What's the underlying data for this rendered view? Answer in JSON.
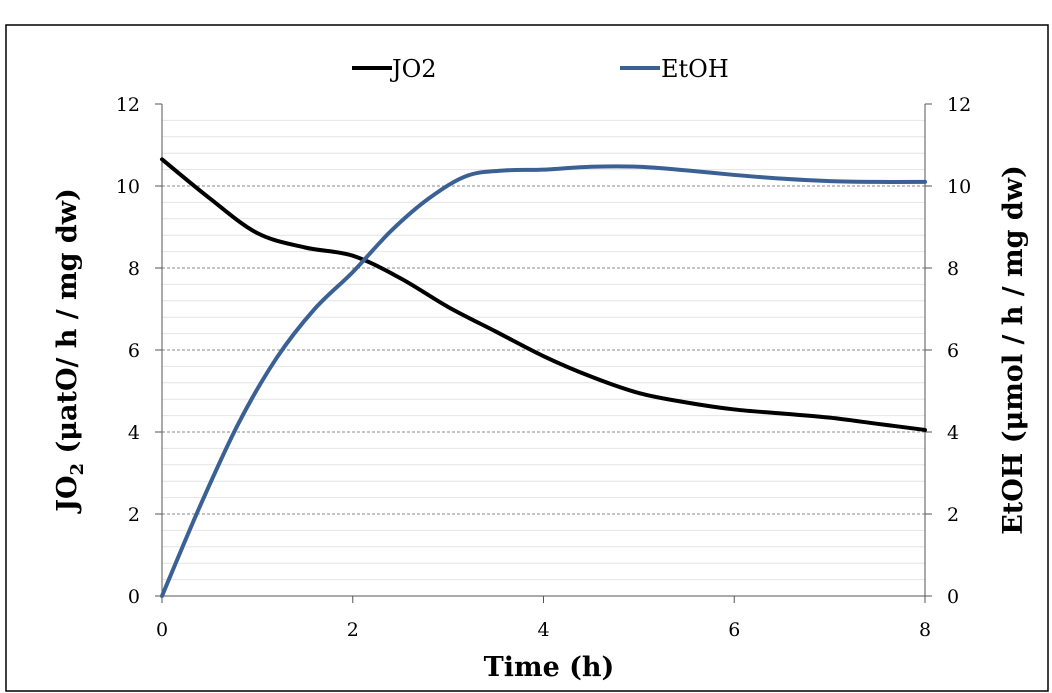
{
  "chart_data": {
    "type": "line",
    "xlabel": "Time (h)",
    "ylabel_left": {
      "main": "JO",
      "sub": "2",
      "rest": " (μatO/ h / mg dw)"
    },
    "ylabel_right": "EtOH (μmol / h / mg dw)",
    "xlim": [
      0,
      8
    ],
    "ylim_left": [
      0,
      12
    ],
    "ylim_right": [
      0,
      12
    ],
    "x_ticks": [
      "0",
      "2",
      "4",
      "6",
      "8"
    ],
    "y_ticks_left": [
      "0",
      "2",
      "4",
      "6",
      "8",
      "10",
      "12"
    ],
    "y_ticks_right": [
      "0",
      "2",
      "4",
      "6",
      "8",
      "10",
      "12"
    ],
    "grid": {
      "major_dashed": true,
      "minor": true
    },
    "legend_position": "top-center",
    "series": [
      {
        "name": "JO2",
        "color": "#000000",
        "axis": "left",
        "points": [
          [
            0,
            10.65
          ],
          [
            0.5,
            9.7
          ],
          [
            1,
            8.85
          ],
          [
            1.5,
            8.5
          ],
          [
            2,
            8.3
          ],
          [
            2.5,
            7.75
          ],
          [
            3,
            7.05
          ],
          [
            3.5,
            6.45
          ],
          [
            4,
            5.85
          ],
          [
            4.5,
            5.35
          ],
          [
            5,
            4.95
          ],
          [
            5.5,
            4.72
          ],
          [
            6,
            4.55
          ],
          [
            6.5,
            4.45
          ],
          [
            7,
            4.35
          ],
          [
            7.5,
            4.2
          ],
          [
            8,
            4.05
          ]
        ]
      },
      {
        "name": "EtOH",
        "color": "#3b6194",
        "axis": "right",
        "points": [
          [
            0,
            0
          ],
          [
            0.4,
            2.2
          ],
          [
            0.8,
            4.2
          ],
          [
            1.2,
            5.8
          ],
          [
            1.6,
            7.0
          ],
          [
            2,
            7.9
          ],
          [
            2.4,
            8.9
          ],
          [
            2.8,
            9.7
          ],
          [
            3.2,
            10.25
          ],
          [
            3.6,
            10.38
          ],
          [
            4,
            10.4
          ],
          [
            4.5,
            10.47
          ],
          [
            5,
            10.47
          ],
          [
            5.5,
            10.38
          ],
          [
            6,
            10.27
          ],
          [
            6.5,
            10.18
          ],
          [
            7,
            10.12
          ],
          [
            7.5,
            10.1
          ],
          [
            8,
            10.1
          ]
        ]
      }
    ]
  }
}
